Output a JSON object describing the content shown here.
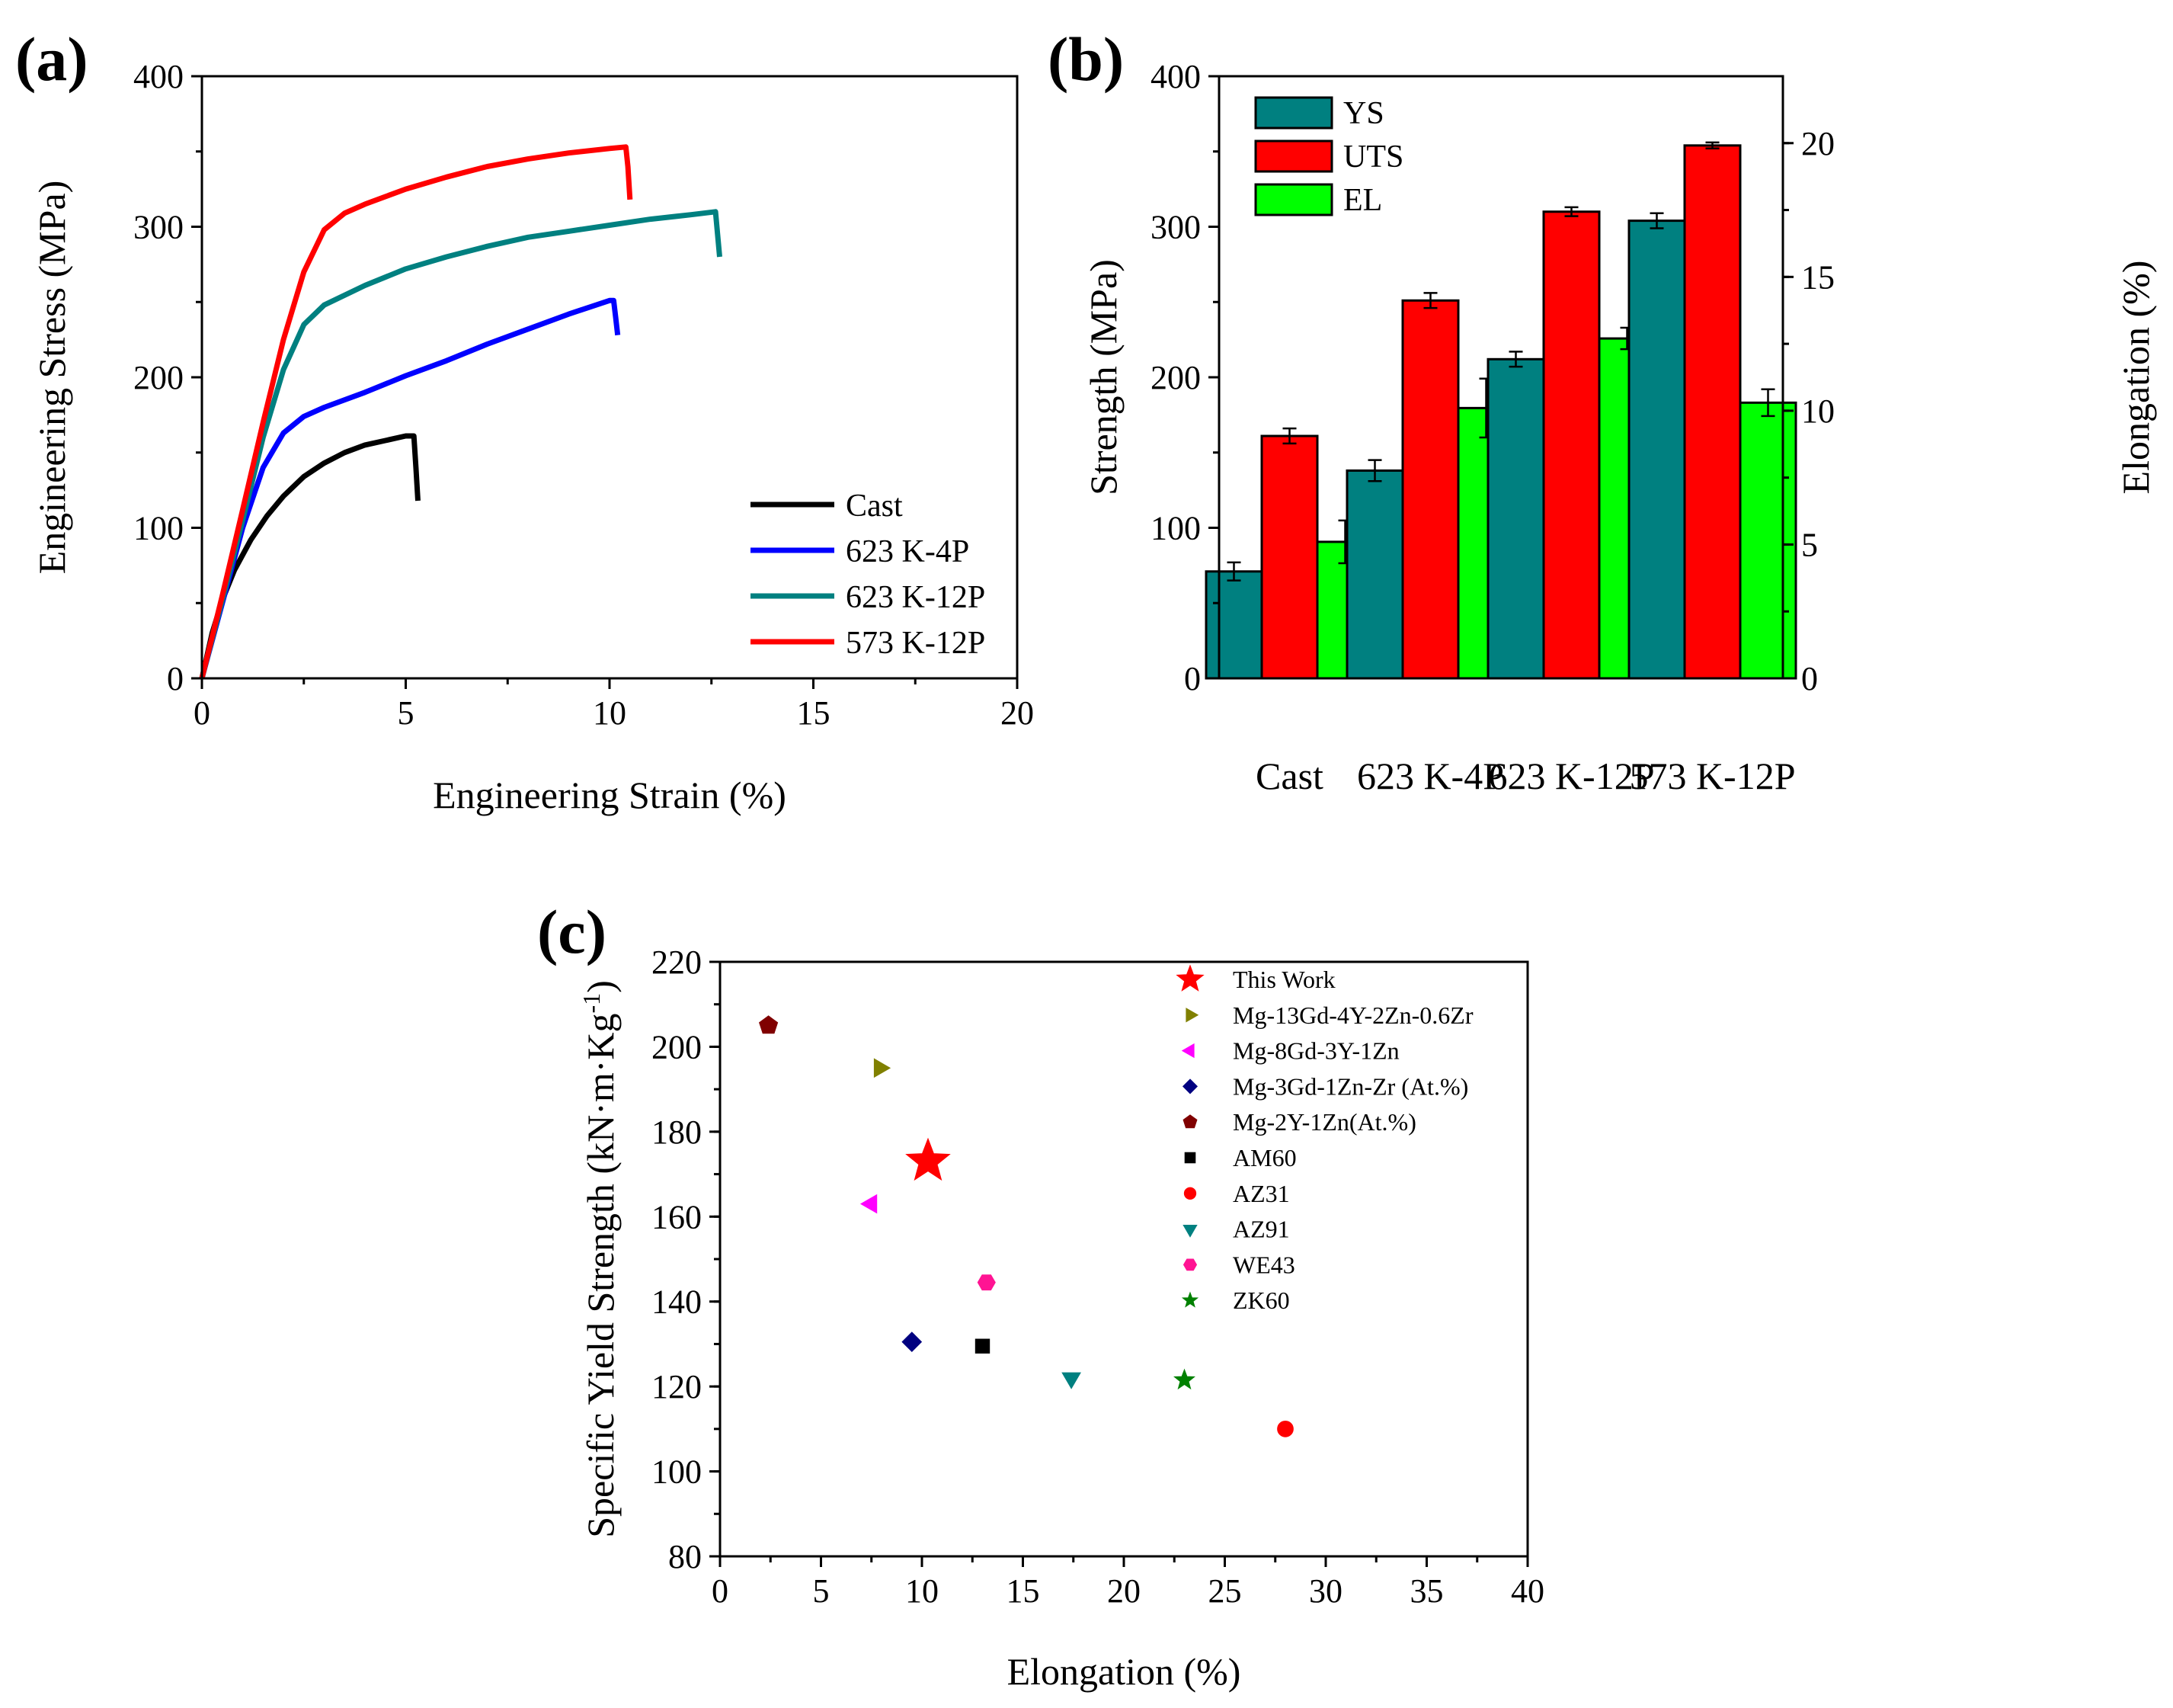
{
  "chart_data": [
    {
      "panel": "(a)",
      "type": "line",
      "xlabel": "Engineering Strain (%)",
      "ylabel": "Engineering Stress (MPa)",
      "xlim": [
        0,
        20
      ],
      "ylim": [
        0,
        400
      ],
      "xticks": [
        "0",
        "5",
        "10",
        "15",
        "20"
      ],
      "yticks": [
        "0",
        "100",
        "200",
        "300",
        "400"
      ],
      "legend_position": "bottom-right",
      "series": [
        {
          "name": "Cast",
          "color": "#000000",
          "x": [
            0,
            0.25,
            0.5,
            0.8,
            1.2,
            1.6,
            2.0,
            2.5,
            3.0,
            3.5,
            4.0,
            4.5,
            5.0,
            5.2,
            5.25,
            5.3
          ],
          "y": [
            0,
            30,
            52,
            72,
            92,
            108,
            121,
            134,
            143,
            150,
            155,
            158,
            161,
            161,
            140,
            118
          ]
        },
        {
          "name": "623 K-4P",
          "color": "#0000ff",
          "x": [
            0,
            0.5,
            1.0,
            1.5,
            2.0,
            2.5,
            3.0,
            4.0,
            5.0,
            6.0,
            7.0,
            8.0,
            9.0,
            10.0,
            10.1,
            10.15,
            10.2
          ],
          "y": [
            0,
            50,
            100,
            140,
            163,
            174,
            180,
            190,
            201,
            211,
            222,
            232,
            242,
            251,
            251,
            240,
            228
          ]
        },
        {
          "name": "623 K-12P",
          "color": "#008080",
          "x": [
            0,
            0.5,
            1.0,
            1.5,
            2.0,
            2.5,
            3.0,
            4.0,
            5.0,
            6.0,
            7.0,
            8.0,
            9.0,
            10.0,
            11.0,
            12.0,
            12.6,
            12.65,
            12.7
          ],
          "y": [
            0,
            52,
            105,
            160,
            205,
            235,
            248,
            261,
            272,
            280,
            287,
            293,
            297,
            301,
            305,
            308,
            310,
            295,
            280
          ]
        },
        {
          "name": "573 K-12P",
          "color": "#ff0000",
          "x": [
            0,
            0.5,
            1.0,
            1.5,
            2.0,
            2.5,
            3.0,
            3.5,
            4.0,
            5.0,
            6.0,
            7.0,
            8.0,
            9.0,
            10.0,
            10.4,
            10.45,
            10.5
          ],
          "y": [
            0,
            55,
            112,
            170,
            225,
            270,
            298,
            309,
            315,
            325,
            333,
            340,
            345,
            349,
            352,
            353,
            340,
            318
          ]
        }
      ]
    },
    {
      "panel": "(b)",
      "type": "bar",
      "ylabel": "Strength (MPa)",
      "y2label": "Elongation (%)",
      "ylim": [
        0,
        400
      ],
      "y2lim": [
        0,
        22.5
      ],
      "yticks": [
        "0",
        "100",
        "200",
        "300",
        "400"
      ],
      "y2ticks": [
        "0",
        "5",
        "10",
        "15",
        "20"
      ],
      "categories": [
        "Cast",
        "623 K-4P",
        "623 K-12P",
        "573 K-12P"
      ],
      "legend_position": "top-left",
      "series": [
        {
          "name": "YS",
          "color": "#008080",
          "axis": "left",
          "values": [
            71,
            138,
            212,
            304
          ],
          "errors": [
            6,
            7,
            5,
            5
          ]
        },
        {
          "name": "UTS",
          "color": "#ff0000",
          "axis": "left",
          "values": [
            161,
            251,
            310,
            354
          ],
          "errors": [
            5,
            5,
            3,
            2
          ]
        },
        {
          "name": "EL",
          "color": "#00ff00",
          "axis": "right",
          "values": [
            5.1,
            10.1,
            12.7,
            10.3
          ],
          "errors": [
            0.8,
            1.1,
            0.4,
            0.5
          ]
        }
      ]
    },
    {
      "panel": "(c)",
      "type": "scatter",
      "xlabel": "Elongation (%)",
      "ylabel_parts": [
        "Specific Yield Strength (kN·m·Kg",
        "-1",
        ")"
      ],
      "xlim": [
        0,
        40
      ],
      "ylim": [
        80,
        220
      ],
      "xticks": [
        "0",
        "5",
        "10",
        "15",
        "20",
        "25",
        "30",
        "35",
        "40"
      ],
      "yticks": [
        "80",
        "100",
        "120",
        "140",
        "160",
        "180",
        "200",
        "220"
      ],
      "legend_position": "top-right",
      "series": [
        {
          "name": "This Work",
          "color": "#ff0000",
          "marker": "star-large",
          "x": [
            10.3
          ],
          "y": [
            173
          ]
        },
        {
          "name": "Mg-13Gd-4Y-2Zn-0.6Zr",
          "color": "#808000",
          "marker": "triangle-right",
          "x": [
            7.9
          ],
          "y": [
            195
          ]
        },
        {
          "name": "Mg-8Gd-3Y-1Zn",
          "color": "#ff00ff",
          "marker": "triangle-left",
          "x": [
            7.5
          ],
          "y": [
            163
          ]
        },
        {
          "name": "Mg-3Gd-1Zn-Zr (At.%)",
          "color": "#000080",
          "marker": "diamond",
          "x": [
            9.5
          ],
          "y": [
            130.5
          ]
        },
        {
          "name": "Mg-2Y-1Zn(At.%)",
          "color": "#800000",
          "marker": "pentagon",
          "x": [
            2.4
          ],
          "y": [
            205
          ]
        },
        {
          "name": "AM60",
          "color": "#000000",
          "marker": "square",
          "x": [
            13.0
          ],
          "y": [
            129.5
          ]
        },
        {
          "name": "AZ31",
          "color": "#ff0000",
          "marker": "circle",
          "x": [
            28.0
          ],
          "y": [
            110
          ]
        },
        {
          "name": "AZ91",
          "color": "#008080",
          "marker": "triangle-down",
          "x": [
            17.4
          ],
          "y": [
            122
          ]
        },
        {
          "name": "WE43",
          "color": "#ff1493",
          "marker": "hexagon",
          "x": [
            13.2
          ],
          "y": [
            144.5
          ]
        },
        {
          "name": "ZK60",
          "color": "#008000",
          "marker": "star-small",
          "x": [
            23.0
          ],
          "y": [
            121.5
          ]
        }
      ]
    }
  ]
}
